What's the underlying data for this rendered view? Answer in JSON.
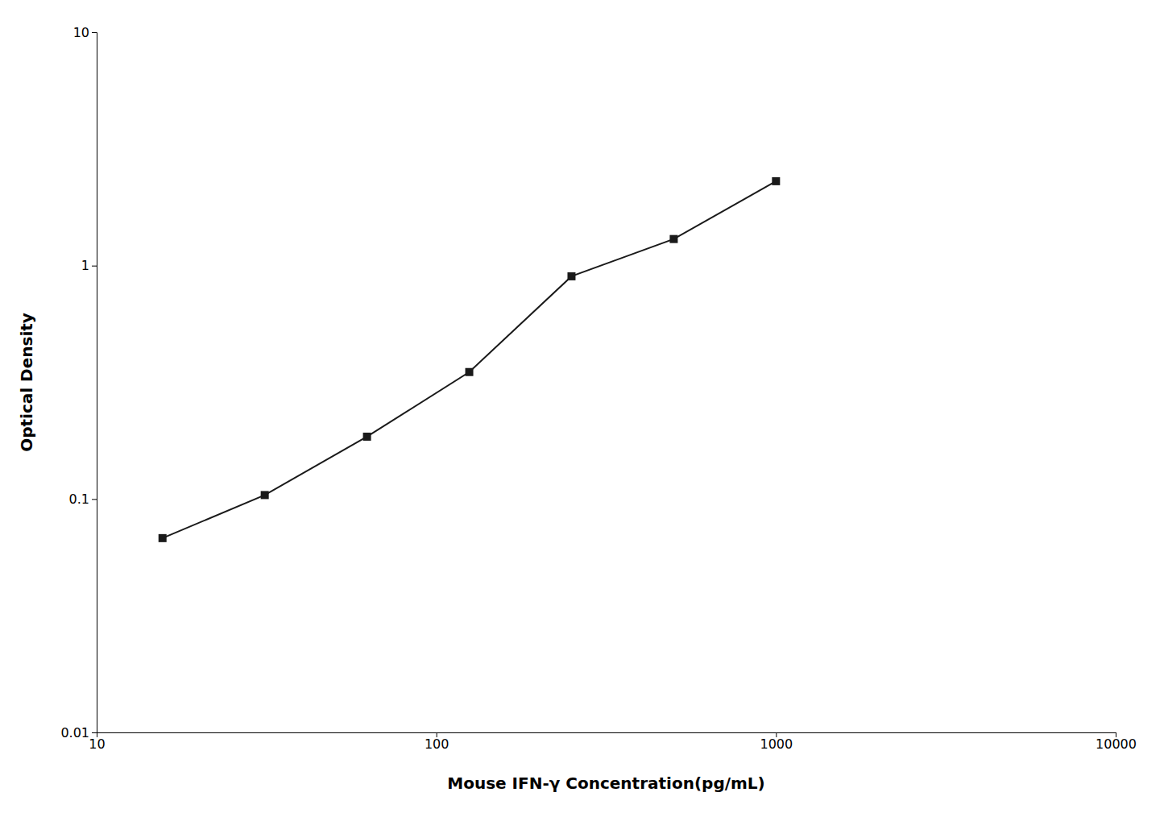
{
  "chart_data": {
    "type": "line",
    "x": [
      15.625,
      31.25,
      62.5,
      125,
      250,
      500,
      1000
    ],
    "values": [
      0.068,
      0.104,
      0.185,
      0.35,
      0.9,
      1.3,
      2.3
    ],
    "color": "#1a1a1a",
    "marker": "square",
    "log": true,
    "xlim": [
      10,
      10000
    ],
    "ylim": [
      0.01,
      10
    ],
    "xticks": [
      10,
      100,
      1000,
      10000
    ],
    "yticks": [
      0.01,
      0.1,
      1,
      10
    ],
    "xlabel": "Mouse IFN-γ Concentration(pg/mL)",
    "ylabel": "Optical Density",
    "grid": false
  }
}
